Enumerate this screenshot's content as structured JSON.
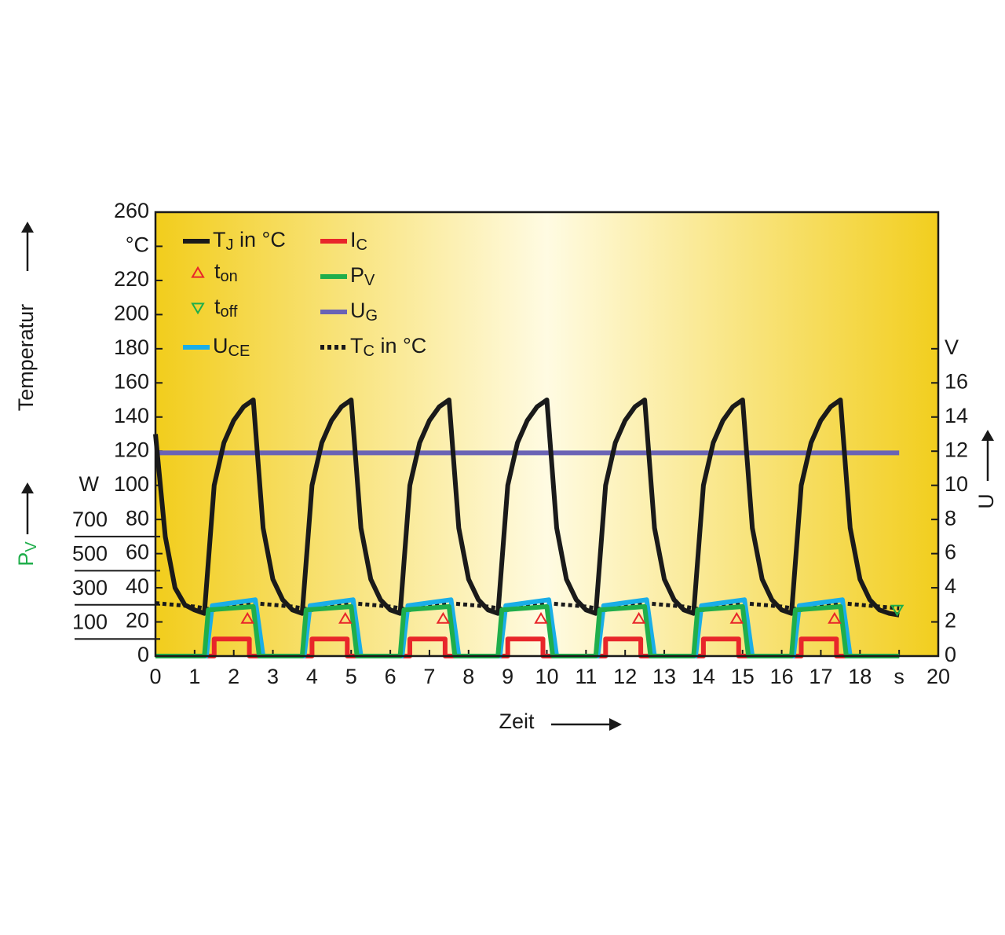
{
  "chart_data": {
    "type": "line",
    "xlabel": "Zeit",
    "ylabel": "Temperatur",
    "y2label": "U",
    "y3label": {
      "name": "P",
      "sub": "V"
    },
    "xlim": [
      0,
      20
    ],
    "xticks": [
      0,
      1,
      2,
      3,
      4,
      5,
      6,
      7,
      8,
      9,
      10,
      11,
      12,
      13,
      14,
      15,
      16,
      17,
      18,
      {
        "value": 19,
        "label": "s"
      },
      20
    ],
    "ylim": [
      0,
      260
    ],
    "yticks": [
      0,
      20,
      40,
      60,
      80,
      100,
      120,
      140,
      160,
      180,
      200,
      220,
      {
        "value": 240,
        "label": "°C"
      },
      260
    ],
    "y2lim": [
      0,
      26
    ],
    "y2ticks": [
      0,
      2,
      4,
      6,
      8,
      10,
      12,
      14,
      16,
      {
        "value": 18,
        "label": "V"
      }
    ],
    "y3lim": [
      0,
      2600
    ],
    "y3ticks": [
      100,
      300,
      500,
      700,
      {
        "value": 1000,
        "label": "W"
      }
    ],
    "y3color": "#1fae4b",
    "series": [
      {
        "name": "T",
        "sub": "J",
        "suffix": " in °C",
        "color": "#1a1a1a",
        "x": [
          0,
          0.25,
          0.5,
          0.75,
          1,
          1.25,
          1.5,
          1.75,
          2,
          2.25,
          2.5,
          2.75,
          3,
          3.25,
          3.5,
          3.75,
          4,
          4.25,
          4.5,
          4.75,
          5,
          5.25,
          5.5,
          5.75,
          6,
          6.25,
          6.5,
          6.75,
          7,
          7.25,
          7.5,
          7.75,
          8,
          8.25,
          8.5,
          8.75,
          9,
          9.25,
          9.5,
          9.75,
          10,
          10.25,
          10.5,
          10.75,
          11,
          11.25,
          11.5,
          11.75,
          12,
          12.25,
          12.5,
          12.75,
          13,
          13.25,
          13.5,
          13.75,
          14,
          14.25,
          14.5,
          14.75,
          15,
          15.25,
          15.5,
          15.75,
          16,
          16.25,
          16.5,
          16.75,
          17,
          17.25,
          17.5,
          17.75,
          18,
          18.25,
          18.5,
          18.75,
          19
        ],
        "values": [
          130,
          70,
          40,
          30,
          27,
          25,
          100,
          125,
          138,
          146,
          150,
          75,
          45,
          33,
          27,
          25,
          100,
          125,
          138,
          146,
          150,
          75,
          45,
          33,
          27,
          25,
          100,
          125,
          138,
          146,
          150,
          75,
          45,
          33,
          27,
          25,
          100,
          125,
          138,
          146,
          150,
          75,
          45,
          33,
          27,
          25,
          100,
          125,
          138,
          146,
          150,
          75,
          45,
          33,
          27,
          25,
          100,
          125,
          138,
          146,
          150,
          75,
          45,
          33,
          27,
          25,
          100,
          125,
          138,
          146,
          150,
          75,
          45,
          33,
          27,
          25,
          24
        ]
      },
      {
        "name": "I",
        "sub": "C",
        "color": "#e8262a",
        "x": [
          0,
          1.5,
          1.5,
          2.4,
          2.4,
          4,
          4,
          4.9,
          4.9,
          6.5,
          6.5,
          7.4,
          7.4,
          9,
          9,
          9.9,
          9.9,
          11.5,
          11.5,
          12.4,
          12.4,
          14,
          14,
          14.9,
          14.9,
          16.5,
          16.5,
          17.4,
          17.4,
          19
        ],
        "values": [
          0,
          0,
          10,
          10,
          0,
          0,
          10,
          10,
          0,
          0,
          10,
          10,
          0,
          0,
          10,
          10,
          0,
          0,
          10,
          10,
          0,
          0,
          10,
          10,
          0,
          0,
          10,
          10,
          0,
          0
        ]
      },
      {
        "name": "P",
        "sub": "V",
        "color": "#1fae4b",
        "axis": "y3",
        "x": [
          0,
          1.25,
          1.35,
          2.5,
          2.65,
          3.75,
          3.85,
          5,
          5.15,
          6.25,
          6.35,
          7.5,
          7.65,
          8.75,
          8.85,
          10,
          10.15,
          11.25,
          11.35,
          12.5,
          12.65,
          13.75,
          13.85,
          15,
          15.15,
          16.25,
          16.35,
          17.5,
          17.65,
          19
        ],
        "values": [
          0,
          0,
          270,
          290,
          0,
          0,
          270,
          290,
          0,
          0,
          270,
          290,
          0,
          0,
          270,
          290,
          0,
          0,
          270,
          290,
          0,
          0,
          270,
          290,
          0,
          0,
          270,
          290,
          0,
          0
        ]
      },
      {
        "name": "U",
        "sub": "G",
        "color": "#6a63b5",
        "axis": "y2",
        "x": [
          0,
          19
        ],
        "values": [
          11.9,
          11.9
        ]
      },
      {
        "name": "U",
        "sub": "CE",
        "color": "#1aaee8",
        "axis": "y2",
        "x": [
          0,
          1.3,
          1.45,
          2.55,
          2.75,
          3.8,
          3.95,
          5.05,
          5.25,
          6.3,
          6.45,
          7.55,
          7.75,
          8.8,
          8.95,
          10.05,
          10.25,
          11.3,
          11.45,
          12.55,
          12.75,
          13.8,
          13.95,
          15.05,
          15.25,
          16.3,
          16.45,
          17.55,
          17.75,
          19
        ],
        "values": [
          0,
          0,
          2.95,
          3.3,
          0,
          0,
          2.95,
          3.3,
          0,
          0,
          2.95,
          3.3,
          0,
          0,
          2.95,
          3.3,
          0,
          0,
          2.95,
          3.3,
          0,
          0,
          2.95,
          3.3,
          0,
          0,
          2.95,
          3.3,
          0,
          0
        ]
      },
      {
        "name": "T",
        "sub": "C",
        "suffix": " in °C",
        "color": "#1a1a1a",
        "dashed": true,
        "x": [
          0,
          0.5,
          1,
          1.5,
          2,
          2.5,
          3,
          3.5,
          4,
          4.5,
          5,
          5.5,
          6,
          6.5,
          7,
          7.5,
          8,
          8.5,
          9,
          9.5,
          10,
          10.5,
          11,
          11.5,
          12,
          12.5,
          13,
          13.5,
          14,
          14.5,
          15,
          15.5,
          16,
          16.5,
          17,
          17.5,
          18,
          18.5,
          19
        ],
        "values": [
          31,
          30,
          29,
          27,
          29,
          31,
          30,
          29,
          27,
          29,
          31,
          30,
          29,
          27,
          29,
          31,
          30,
          29,
          27,
          29,
          31,
          30,
          29,
          27,
          29,
          31,
          30,
          29,
          27,
          29,
          31,
          30,
          29,
          27,
          29,
          31,
          30,
          29,
          28
        ]
      }
    ],
    "markers": [
      {
        "name": "t",
        "sub": "on",
        "color": "#e8262a",
        "shape": "up",
        "x": [
          2.35,
          4.85,
          7.35,
          9.85,
          12.35,
          14.85,
          17.35
        ],
        "values": [
          22,
          22,
          22,
          22,
          22,
          22,
          22
        ]
      },
      {
        "name": "t",
        "sub": "off",
        "color": "#1fae4b",
        "shape": "down",
        "x": [
          18.95
        ],
        "values": [
          27
        ]
      }
    ]
  }
}
